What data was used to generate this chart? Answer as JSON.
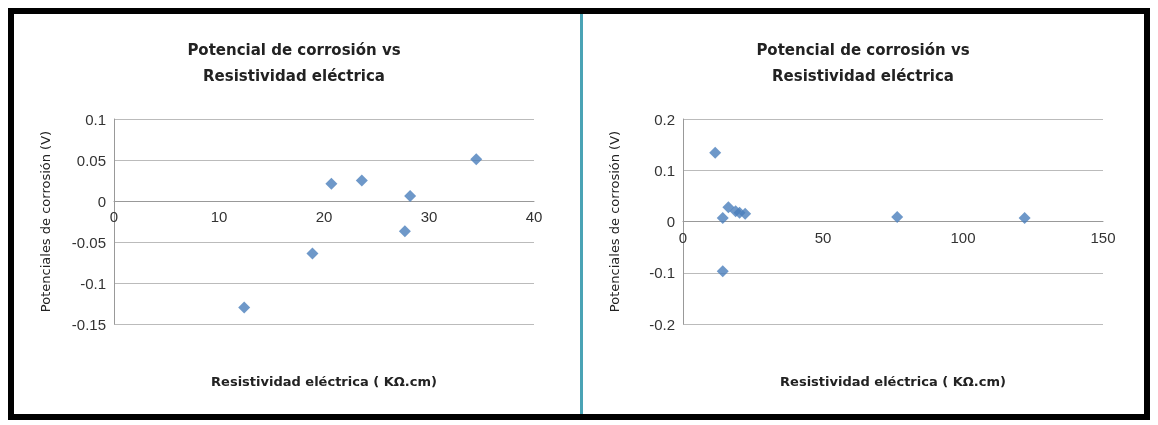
{
  "chart_data": [
    {
      "type": "scatter",
      "title": "Potencial de corrosión vs\nResistividad eléctrica",
      "xlabel": "Resistividad eléctrica ( KΩ.cm)",
      "ylabel": "Potenciales de corrosión (V)",
      "xlim": [
        0,
        40
      ],
      "xticks": [
        0,
        10,
        20,
        30,
        40
      ],
      "ylim": [
        -0.15,
        0.1
      ],
      "yticks": [
        -0.15,
        -0.1,
        -0.05,
        0,
        0.05,
        0.1
      ],
      "grid": "y",
      "marker": "diamond",
      "series": [
        {
          "color": "#4a7ebb",
          "x": [
            12.4,
            18.9,
            20.7,
            23.6,
            28.2,
            27.7,
            34.5
          ],
          "values": [
            -0.13,
            -0.064,
            0.021,
            0.025,
            0.006,
            -0.037,
            0.051
          ]
        }
      ]
    },
    {
      "type": "scatter",
      "title": "Potencial de corrosión vs\nResistividad eléctrica",
      "xlabel": "Resistividad eléctrica ( KΩ.cm)",
      "ylabel": "Potenciales de corrosión (V)",
      "xlim": [
        0,
        150
      ],
      "xticks": [
        0,
        50,
        100,
        150
      ],
      "ylim": [
        -0.2,
        0.2
      ],
      "yticks": [
        -0.2,
        -0.1,
        0,
        0.1,
        0.2
      ],
      "grid": "y",
      "marker": "diamond",
      "series": [
        {
          "color": "#4a7ebb",
          "x": [
            11.5,
            14.2,
            14.2,
            16.2,
            18.8,
            20.2,
            22.2,
            76.5,
            122
          ],
          "values": [
            0.134,
            -0.097,
            0.007,
            0.028,
            0.02,
            0.017,
            0.015,
            0.009,
            0.007
          ]
        }
      ]
    }
  ]
}
